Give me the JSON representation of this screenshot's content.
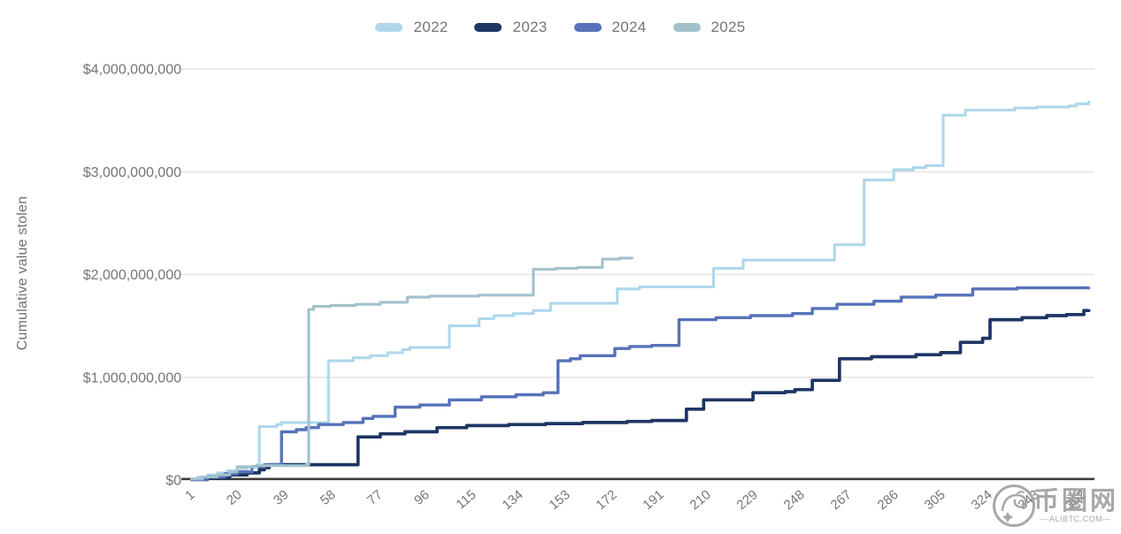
{
  "y_axis": {
    "title": "Cumulative value stolen",
    "tick_labels": [
      "$0",
      "$1,000,000,000",
      "$2,000,000,000",
      "$3,000,000,000",
      "$4,000,000,000"
    ],
    "tick_values_usd": [
      0,
      1000000000,
      2000000000,
      3000000000,
      4000000000
    ]
  },
  "x_axis": {
    "tick_days": [
      1,
      20,
      39,
      58,
      77,
      96,
      115,
      134,
      153,
      172,
      191,
      210,
      229,
      248,
      267,
      286,
      305,
      324,
      343,
      362
    ]
  },
  "watermark": {
    "site_name_cn": "币圈网",
    "site_domain": "—ALIBTC.COM—",
    "logo": "dragon-seal-logo"
  },
  "colors": {
    "grid": "#e4e4e4",
    "axis_line": "#3d3d3d",
    "tick_text": "#757575",
    "background": "#ffffff"
  },
  "chart_data": {
    "type": "line",
    "subtype": "step-after",
    "title": "",
    "xlabel": "",
    "ylabel": "Cumulative value stolen",
    "x_unit": "day_of_year",
    "y_unit": "USD_billions",
    "xlim": [
      1,
      366
    ],
    "ylim_usd_billions": [
      0,
      4
    ],
    "grid": "horizontal",
    "legend_position": "top-center",
    "series": [
      {
        "name": "2022",
        "color": "#aed7ec",
        "points_day_value": [
          [
            1,
            0.01
          ],
          [
            4,
            0.03
          ],
          [
            8,
            0.05
          ],
          [
            12,
            0.07
          ],
          [
            16,
            0.09
          ],
          [
            20,
            0.11
          ],
          [
            24,
            0.13
          ],
          [
            28,
            0.15
          ],
          [
            29,
            0.52
          ],
          [
            36,
            0.54
          ],
          [
            38,
            0.56
          ],
          [
            57,
            1.16
          ],
          [
            67,
            1.19
          ],
          [
            74,
            1.21
          ],
          [
            81,
            1.24
          ],
          [
            87,
            1.27
          ],
          [
            90,
            1.29
          ],
          [
            106,
            1.5
          ],
          [
            118,
            1.57
          ],
          [
            124,
            1.6
          ],
          [
            132,
            1.62
          ],
          [
            140,
            1.65
          ],
          [
            147,
            1.72
          ],
          [
            174,
            1.86
          ],
          [
            183,
            1.88
          ],
          [
            213,
            2.06
          ],
          [
            225,
            2.14
          ],
          [
            262,
            2.29
          ],
          [
            274,
            2.92
          ],
          [
            286,
            3.02
          ],
          [
            294,
            3.04
          ],
          [
            299,
            3.06
          ],
          [
            306,
            3.55
          ],
          [
            315,
            3.6
          ],
          [
            335,
            3.62
          ],
          [
            344,
            3.63
          ],
          [
            357,
            3.64
          ],
          [
            360,
            3.66
          ],
          [
            365,
            3.69
          ]
        ]
      },
      {
        "name": "2023",
        "color": "#1e3564",
        "points_day_value": [
          [
            1,
            0.005
          ],
          [
            8,
            0.02
          ],
          [
            17,
            0.05
          ],
          [
            24,
            0.07
          ],
          [
            29,
            0.1
          ],
          [
            31,
            0.12
          ],
          [
            33,
            0.15
          ],
          [
            69,
            0.42
          ],
          [
            78,
            0.45
          ],
          [
            88,
            0.47
          ],
          [
            101,
            0.51
          ],
          [
            113,
            0.53
          ],
          [
            130,
            0.54
          ],
          [
            145,
            0.55
          ],
          [
            160,
            0.56
          ],
          [
            178,
            0.57
          ],
          [
            188,
            0.58
          ],
          [
            202,
            0.69
          ],
          [
            209,
            0.78
          ],
          [
            229,
            0.85
          ],
          [
            242,
            0.86
          ],
          [
            246,
            0.88
          ],
          [
            253,
            0.97
          ],
          [
            264,
            1.18
          ],
          [
            277,
            1.2
          ],
          [
            295,
            1.22
          ],
          [
            305,
            1.24
          ],
          [
            313,
            1.34
          ],
          [
            322,
            1.38
          ],
          [
            325,
            1.56
          ],
          [
            338,
            1.58
          ],
          [
            348,
            1.6
          ],
          [
            356,
            1.61
          ],
          [
            362,
            1.61
          ],
          [
            363,
            1.65
          ],
          [
            365,
            1.66
          ]
        ]
      },
      {
        "name": "2024",
        "color": "#5672b9",
        "points_day_value": [
          [
            1,
            0.005
          ],
          [
            8,
            0.03
          ],
          [
            15,
            0.06
          ],
          [
            20,
            0.08
          ],
          [
            26,
            0.13
          ],
          [
            31,
            0.15
          ],
          [
            38,
            0.47
          ],
          [
            44,
            0.49
          ],
          [
            48,
            0.51
          ],
          [
            53,
            0.54
          ],
          [
            63,
            0.56
          ],
          [
            71,
            0.6
          ],
          [
            75,
            0.62
          ],
          [
            84,
            0.71
          ],
          [
            94,
            0.73
          ],
          [
            106,
            0.78
          ],
          [
            119,
            0.81
          ],
          [
            133,
            0.83
          ],
          [
            144,
            0.85
          ],
          [
            150,
            1.16
          ],
          [
            155,
            1.18
          ],
          [
            159,
            1.21
          ],
          [
            173,
            1.28
          ],
          [
            179,
            1.3
          ],
          [
            188,
            1.31
          ],
          [
            199,
            1.56
          ],
          [
            214,
            1.58
          ],
          [
            228,
            1.6
          ],
          [
            245,
            1.62
          ],
          [
            253,
            1.67
          ],
          [
            263,
            1.71
          ],
          [
            278,
            1.74
          ],
          [
            289,
            1.78
          ],
          [
            303,
            1.8
          ],
          [
            318,
            1.86
          ],
          [
            336,
            1.87
          ],
          [
            365,
            1.88
          ]
        ]
      },
      {
        "name": "2025",
        "color": "#a2c1cd",
        "points_day_value": [
          [
            1,
            0.01
          ],
          [
            6,
            0.03
          ],
          [
            12,
            0.05
          ],
          [
            17,
            0.08
          ],
          [
            20,
            0.13
          ],
          [
            28,
            0.14
          ],
          [
            48,
            0.15
          ],
          [
            49,
            1.66
          ],
          [
            51,
            1.69
          ],
          [
            58,
            1.7
          ],
          [
            68,
            1.71
          ],
          [
            78,
            1.73
          ],
          [
            89,
            1.78
          ],
          [
            98,
            1.79
          ],
          [
            118,
            1.8
          ],
          [
            140,
            2.05
          ],
          [
            149,
            2.06
          ],
          [
            158,
            2.07
          ],
          [
            168,
            2.15
          ],
          [
            175,
            2.16
          ],
          [
            180,
            2.17
          ]
        ]
      }
    ]
  }
}
